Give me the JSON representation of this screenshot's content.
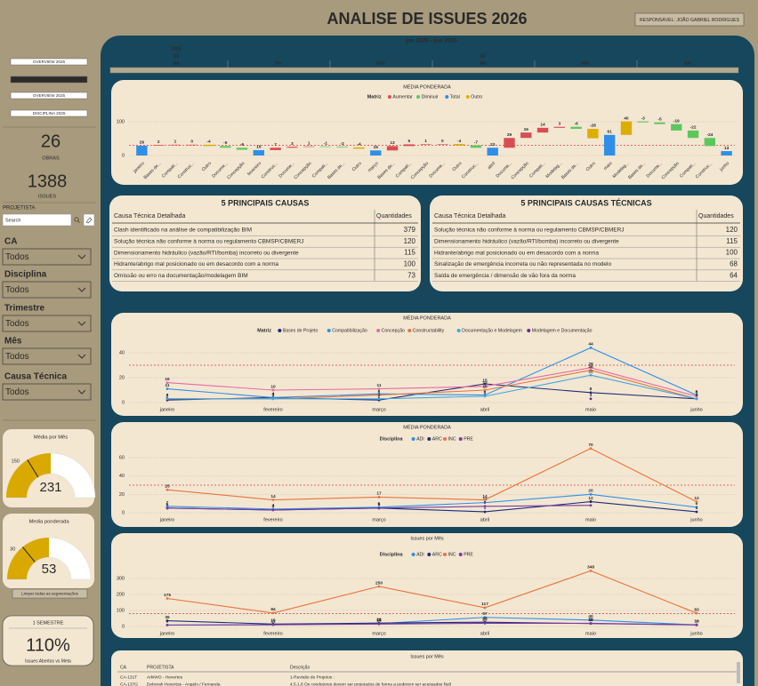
{
  "header": {
    "title": "ANALISE DE ISSUES 2026",
    "responsavel": "RESPONSÁVEL: JOÃO GABRIEL RODRIGUES"
  },
  "nav": [
    "OVERVIEW 2026",
    "DISCIPLINA 2026",
    "OVERVIEW 2025",
    "DISCIPLINA 2025"
  ],
  "nav_active": 1,
  "kpis": [
    {
      "value": 26,
      "label": "OBRAS"
    },
    {
      "value": 1388,
      "label": "ISSUES"
    }
  ],
  "search": {
    "label": "PROJETISTA",
    "placeholder": "Search"
  },
  "filters": [
    {
      "label": "CA",
      "value": "Todos"
    },
    {
      "label": "Disciplina",
      "value": "Todos"
    },
    {
      "label": "Trimestre",
      "value": "Todos"
    },
    {
      "label": "Mês",
      "value": "Todos"
    },
    {
      "label": "Causa Técnica",
      "value": "Todos"
    }
  ],
  "gauges": [
    {
      "title": "Média por Mês",
      "value": 231,
      "target": 150,
      "min": 0,
      "max": 462,
      "color": "#d9a900"
    },
    {
      "title": "Media ponderada",
      "value": 53,
      "target": 30,
      "min": 0,
      "max": 106,
      "color": "#d9a900"
    }
  ],
  "clear_button": "Limpar todas as segmentações",
  "semester": {
    "title": "1 SEMESTRE",
    "value": "110%",
    "caption": "Issues Abertos vs Meta"
  },
  "timeline": {
    "range": "jan 2026 - jun 2026",
    "year": "2026",
    "quarters": [
      "Q1",
      "Q2"
    ],
    "months": [
      "jan",
      "fev",
      "mar",
      "abr",
      "mai",
      "jun"
    ]
  },
  "chart_data": [
    {
      "type": "waterfall",
      "title": "MÉDIA PONDERADA",
      "legend_title": "Matriz",
      "series": [
        {
          "name": "Aumentar",
          "color": "#d94c55"
        },
        {
          "name": "Diminuir",
          "color": "#5cc75c"
        },
        {
          "name": "Total",
          "color": "#2f8fe8"
        },
        {
          "name": "Outro",
          "color": "#dcae00"
        }
      ],
      "categories": [
        "janeiro",
        "Bases de...",
        "Compati...",
        "Construc...",
        "Outro",
        "Docume...",
        "Concepção",
        "fevereiro",
        "Construc...",
        "Docume...",
        "Concepção",
        "Compati...",
        "Bases de...",
        "Outro",
        "março",
        "Bases de...",
        "Compati...",
        "Concepção",
        "Docume...",
        "Outro",
        "Construc...",
        "abril",
        "Docume...",
        "Concepção",
        "Compati...",
        "Modelag...",
        "Bases de...",
        "Outro",
        "maio",
        "Modelag...",
        "Bases de...",
        "Docume...",
        "Concepção",
        "Compati...",
        "Construc...",
        "junho"
      ],
      "values": [
        29,
        2,
        1,
        0,
        -4,
        -5,
        -6,
        16,
        7,
        3,
        1,
        -1,
        -2,
        -4,
        15,
        13,
        5,
        1,
        0,
        -4,
        -7,
        23,
        29,
        16,
        14,
        3,
        -6,
        -28,
        61,
        40,
        -3,
        -5,
        -19,
        -22,
        -24,
        13
      ],
      "kinds": [
        2,
        0,
        0,
        0,
        3,
        1,
        1,
        2,
        0,
        0,
        0,
        1,
        1,
        3,
        2,
        0,
        0,
        0,
        0,
        3,
        1,
        2,
        0,
        0,
        0,
        0,
        1,
        3,
        2,
        3,
        1,
        1,
        1,
        1,
        1,
        2
      ],
      "ylim": [
        -10,
        110
      ],
      "yticks": [
        0,
        100
      ],
      "reference_line": 30,
      "grid": true
    },
    {
      "type": "line",
      "title": "MÉDIA PONDERADA",
      "legend_title": "Matriz",
      "categories": [
        "janeiro",
        "fevereiro",
        "março",
        "abril",
        "maio",
        "junho"
      ],
      "series": [
        {
          "name": "Bases de Projeto",
          "color": "#1f2a7a",
          "values": [
            2,
            4,
            2,
            15,
            8,
            3
          ]
        },
        {
          "name": "Compatibilização",
          "color": "#2f8fe8",
          "values": [
            11,
            4,
            7,
            6,
            44,
            6
          ]
        },
        {
          "name": "Concepção",
          "color": "#e56aa6",
          "values": [
            16,
            10,
            11,
            13,
            28,
            5
          ]
        },
        {
          "name": "Constructability",
          "color": "#e8743b",
          "values": [
            3,
            3,
            6,
            10,
            26,
            3
          ]
        },
        {
          "name": "Documentação e Modelagem",
          "color": "#41a6e0",
          "values": [
            3,
            3,
            3,
            5,
            22,
            3
          ]
        },
        {
          "name": "Modelagem e Documentação",
          "color": "#6a2a8e",
          "values": [
            null,
            null,
            null,
            null,
            3,
            null
          ]
        }
      ],
      "ylim": [
        0,
        50
      ],
      "yticks": [
        0,
        20,
        40
      ],
      "reference_line": 30,
      "grid": true
    },
    {
      "type": "line",
      "title": "MÉDIA PONDERADA",
      "legend_title": "Disciplina",
      "categories": [
        "janeiro",
        "fevereiro",
        "março",
        "abril",
        "maio",
        "junho"
      ],
      "series": [
        {
          "name": "ADI",
          "color": "#2f8fe8",
          "values": [
            7,
            4,
            6,
            11,
            20,
            6
          ]
        },
        {
          "name": "ARC",
          "color": "#1f2a7a",
          "values": [
            5,
            3,
            5,
            1,
            12,
            1
          ]
        },
        {
          "name": "INC",
          "color": "#e8743b",
          "values": [
            25,
            14,
            17,
            14,
            70,
            12
          ]
        },
        {
          "name": "PRE",
          "color": "#7a3aa0",
          "values": [
            5,
            3,
            5,
            7,
            8,
            null
          ]
        }
      ],
      "ylim": [
        0,
        75
      ],
      "yticks": [
        0,
        20,
        40,
        60
      ],
      "reference_line": 30,
      "grid": true
    },
    {
      "type": "line",
      "title": "Issues por Mês",
      "legend_title": "Disciplina",
      "categories": [
        "janeiro",
        "fevereiro",
        "março",
        "abril",
        "maio",
        "junho"
      ],
      "series": [
        {
          "name": "ADI",
          "color": "#2f8fe8",
          "values": [
            9,
            11,
            18,
            57,
            40,
            10
          ]
        },
        {
          "name": "ARC",
          "color": "#1f2a7a",
          "values": [
            36,
            15,
            21,
            27,
            18,
            10
          ]
        },
        {
          "name": "INC",
          "color": "#e8743b",
          "values": [
            175,
            84,
            250,
            117,
            348,
            83
          ]
        },
        {
          "name": "PRE",
          "color": "#7a3aa0",
          "values": [
            9,
            11,
            15,
            20,
            20,
            10
          ]
        }
      ],
      "ylim": [
        0,
        370
      ],
      "yticks": [
        0,
        100,
        200,
        300
      ],
      "reference_line": 80,
      "grid": true
    }
  ],
  "tables": [
    {
      "title": "5 PRINCIPAIS CAUSAS",
      "columns": [
        "Causa Técnica Detalhada",
        "Quantidades"
      ],
      "rows": [
        [
          "Clash identificado na análise de compatibilização BIM",
          379
        ],
        [
          "Solução técnica não conforme à norma ou regulamento CBMSP/CBMERJ",
          120
        ],
        [
          "Dimensionamento hidráulico (vazão/RTI/bomba) incorreto ou divergente",
          115
        ],
        [
          "Hidrante/abrigo mal posicionado ou em desacordo com a norma",
          100
        ],
        [
          "Omissão ou erro na documentação/modelagem BIM",
          73
        ]
      ]
    },
    {
      "title": "5 PRINCIPAIS CAUSAS TÉCNICAS",
      "columns": [
        "Causa Técnica Detalhada",
        "Quantidades"
      ],
      "rows": [
        [
          "Solução técnica não conforme à norma ou regulamento CBMSP/CBMERJ",
          120
        ],
        [
          "Dimensionamento hidráulico (vazão/RTI/bomba) incorreto ou divergente",
          115
        ],
        [
          "Hidrante/abrigo mal posicionado ou em desacordo com a norma",
          100
        ],
        [
          "Sinalização de emergência incorreta ou não representada no modelo",
          68
        ],
        [
          "Saída de emergência / dimensão de vão fora da norma",
          64
        ]
      ]
    }
  ],
  "issues_table": {
    "title": "Issues por Mês",
    "columns": [
      "CA",
      "PROJETISTA",
      "Descrição"
    ],
    "rows": [
      [
        "CA-131T",
        "ArkiWO - Hevertos",
        "1-Revisão de Projetos :"
      ],
      [
        "CA-137G",
        "Deborah Hevertos - Angelo / Fernanda",
        "4.5.1.6 Os condutores devem ser projetados de forma a poderem ser acessados fácil"
      ]
    ]
  }
}
